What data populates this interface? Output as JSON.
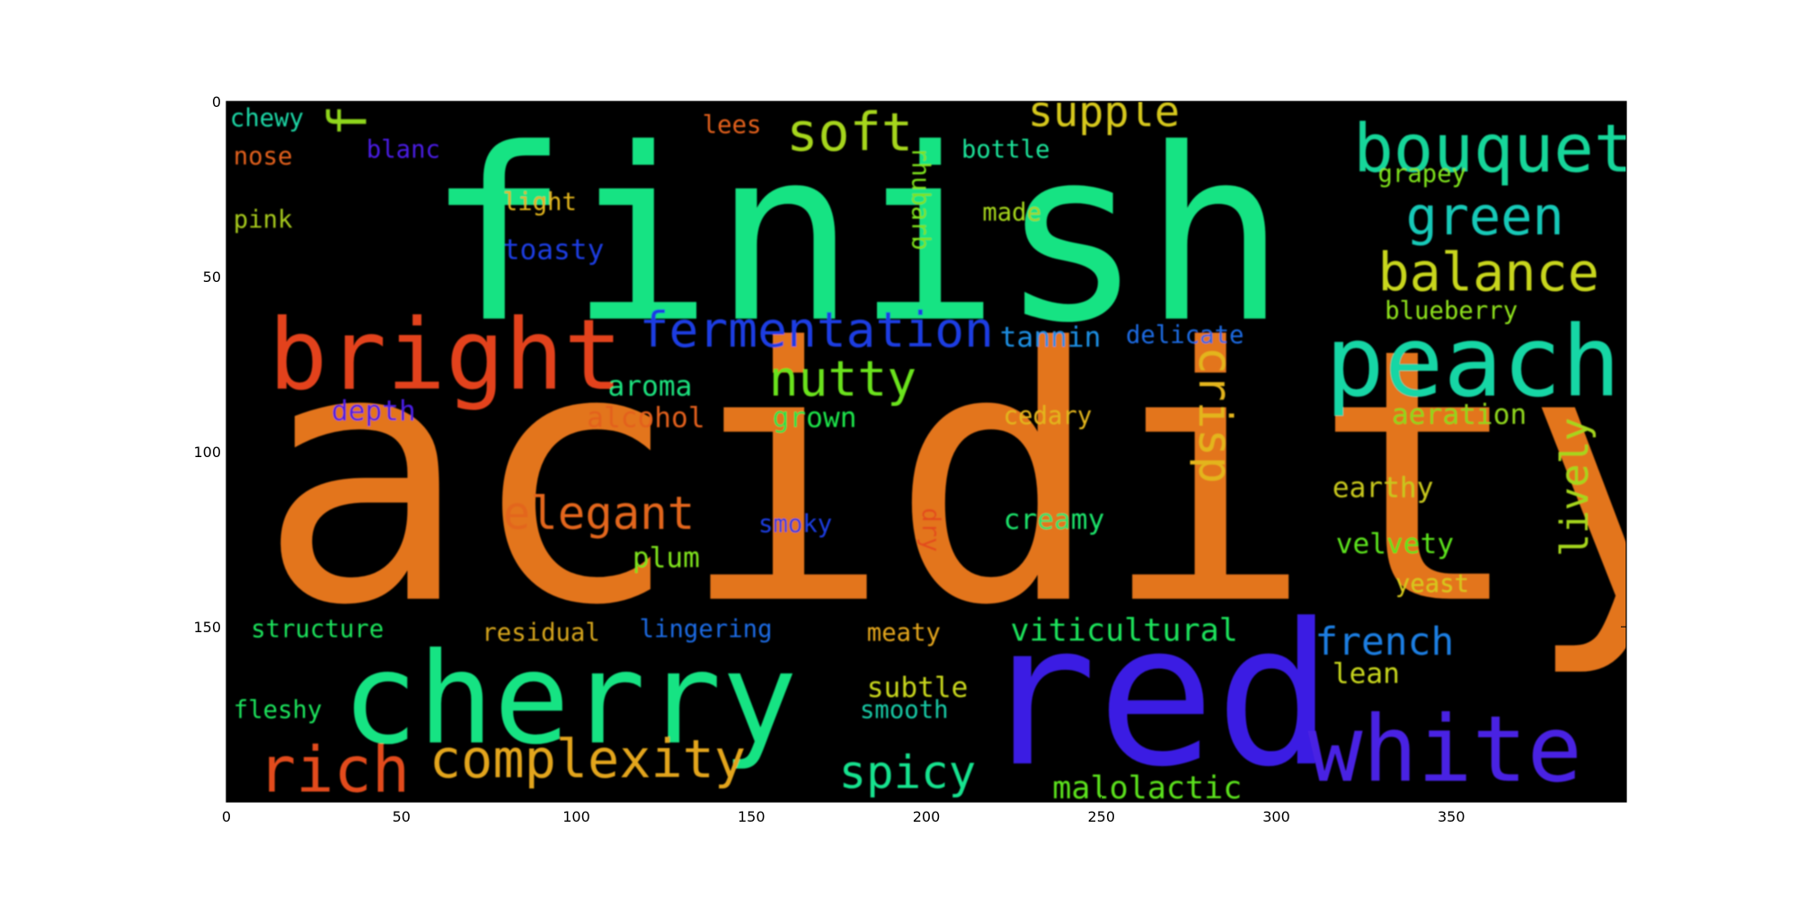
{
  "chart_data": {
    "type": "wordcloud",
    "title": "",
    "xlabel": "",
    "ylabel": "",
    "x_ticks": [
      "0",
      "50",
      "100",
      "150",
      "200",
      "250",
      "300",
      "350"
    ],
    "y_ticks": [
      "0",
      "50",
      "100",
      "150"
    ],
    "xlim": [
      0,
      400
    ],
    "ylim": [
      200,
      0
    ],
    "background": "#000000",
    "words": [
      {
        "text": "finish",
        "x": 57,
        "y": 62,
        "size": 68,
        "color": "#17e383",
        "rot": 0
      },
      {
        "text": "acidity",
        "x": 9,
        "y": 142,
        "size": 100,
        "color": "#e3751a",
        "rot": 0
      },
      {
        "text": "cherry",
        "x": 33,
        "y": 183,
        "size": 36,
        "color": "#17e383",
        "rot": 0
      },
      {
        "text": "red",
        "x": 215,
        "y": 189,
        "size": 56,
        "color": "#3a1fe3",
        "rot": 0
      },
      {
        "text": "bright",
        "x": 12,
        "y": 82,
        "size": 28,
        "color": "#e3421a",
        "rot": 0
      },
      {
        "text": "peach",
        "x": 314,
        "y": 84,
        "size": 28,
        "color": "#17d6a5",
        "rot": 0
      },
      {
        "text": "white",
        "x": 309,
        "y": 194,
        "size": 26,
        "color": "#4a20e3",
        "rot": 0
      },
      {
        "text": "bouquet",
        "x": 322,
        "y": 20,
        "size": 19,
        "color": "#17d69a",
        "rot": 0
      },
      {
        "text": "complexity",
        "x": 58,
        "y": 193,
        "size": 15,
        "color": "#e3a51a",
        "rot": 0
      },
      {
        "text": "rich",
        "x": 9,
        "y": 197,
        "size": 18,
        "color": "#e34b1a",
        "rot": 0
      },
      {
        "text": "fermentation",
        "x": 118,
        "y": 70,
        "size": 14,
        "color": "#1a3ee3",
        "rot": 0
      },
      {
        "text": "balance",
        "x": 329,
        "y": 54,
        "size": 15,
        "color": "#c8d61a",
        "rot": 0
      },
      {
        "text": "green",
        "x": 337,
        "y": 38,
        "size": 15,
        "color": "#17c9b8",
        "rot": 0
      },
      {
        "text": "soft",
        "x": 160,
        "y": 14,
        "size": 15,
        "color": "#a6d61a",
        "rot": 0
      },
      {
        "text": "supple",
        "x": 229,
        "y": 7,
        "size": 12,
        "color": "#d6c81a",
        "rot": 0
      },
      {
        "text": "nutty",
        "x": 155,
        "y": 84,
        "size": 14,
        "color": "#6be31a",
        "rot": 0
      },
      {
        "text": "elegant",
        "x": 79,
        "y": 122,
        "size": 13,
        "color": "#e3661a",
        "rot": 0
      },
      {
        "text": "spicy",
        "x": 175,
        "y": 196,
        "size": 13,
        "color": "#17e38f",
        "rot": 0
      },
      {
        "text": "french",
        "x": 311,
        "y": 158,
        "size": 11,
        "color": "#1a7fe3",
        "rot": 0
      },
      {
        "text": "viticultural",
        "x": 224,
        "y": 154,
        "size": 9,
        "color": "#1ae35c",
        "rot": 0
      },
      {
        "text": "malolactic",
        "x": 236,
        "y": 199,
        "size": 9,
        "color": "#5ce31a",
        "rot": 0
      },
      {
        "text": "aroma",
        "x": 109,
        "y": 84,
        "size": 8,
        "color": "#1ae37f",
        "rot": 0
      },
      {
        "text": "alcohol",
        "x": 103,
        "y": 93,
        "size": 8,
        "color": "#e3601a",
        "rot": 0
      },
      {
        "text": "grown",
        "x": 156,
        "y": 93,
        "size": 8,
        "color": "#1ae34a",
        "rot": 0
      },
      {
        "text": "cedary",
        "x": 222,
        "y": 92,
        "size": 7,
        "color": "#e3b51a",
        "rot": 0
      },
      {
        "text": "aeration",
        "x": 333,
        "y": 92,
        "size": 8,
        "color": "#8fd61a",
        "rot": 0
      },
      {
        "text": "tannin",
        "x": 221,
        "y": 70,
        "size": 8,
        "color": "#1a8fe3",
        "rot": 0
      },
      {
        "text": "delicate",
        "x": 257,
        "y": 69,
        "size": 7,
        "color": "#1a6be3",
        "rot": 0
      },
      {
        "text": "blueberry",
        "x": 331,
        "y": 62,
        "size": 7,
        "color": "#8fe31a",
        "rot": 0
      },
      {
        "text": "depth",
        "x": 30,
        "y": 91,
        "size": 8,
        "color": "#4a1ae3",
        "rot": 0
      },
      {
        "text": "toasty",
        "x": 79,
        "y": 45,
        "size": 8,
        "color": "#1a3ee3",
        "rot": 0
      },
      {
        "text": "light",
        "x": 79,
        "y": 31,
        "size": 7,
        "color": "#e3b51a",
        "rot": 0
      },
      {
        "text": "pink",
        "x": 2,
        "y": 36,
        "size": 7,
        "color": "#a5c81a",
        "rot": 0
      },
      {
        "text": "nose",
        "x": 2,
        "y": 18,
        "size": 7,
        "color": "#e3601a",
        "rot": 0
      },
      {
        "text": "chewy",
        "x": 1,
        "y": 7,
        "size": 7,
        "color": "#1ad6a5",
        "rot": 0
      },
      {
        "text": "blanc",
        "x": 40,
        "y": 16,
        "size": 7,
        "color": "#4a1ae3",
        "rot": 0
      },
      {
        "text": "lees",
        "x": 136,
        "y": 9,
        "size": 7,
        "color": "#e3601a",
        "rot": 0
      },
      {
        "text": "bottle",
        "x": 210,
        "y": 16,
        "size": 7,
        "color": "#1ae39a",
        "rot": 0
      },
      {
        "text": "grapey",
        "x": 329,
        "y": 23,
        "size": 7,
        "color": "#7fe31a",
        "rot": 0
      },
      {
        "text": "made",
        "x": 216,
        "y": 34,
        "size": 7,
        "color": "#a5d61a",
        "rot": 0
      },
      {
        "text": "earthy",
        "x": 316,
        "y": 113,
        "size": 8,
        "color": "#c8c81a",
        "rot": 0
      },
      {
        "text": "velvety",
        "x": 317,
        "y": 129,
        "size": 8,
        "color": "#5ce31a",
        "rot": 0
      },
      {
        "text": "yeast",
        "x": 334,
        "y": 140,
        "size": 7,
        "color": "#d6c81a",
        "rot": 0
      },
      {
        "text": "creamy",
        "x": 222,
        "y": 122,
        "size": 8,
        "color": "#1ae36b",
        "rot": 0
      },
      {
        "text": "smoky",
        "x": 152,
        "y": 123,
        "size": 7,
        "color": "#1a3ee3",
        "rot": 0
      },
      {
        "text": "plum",
        "x": 116,
        "y": 133,
        "size": 8,
        "color": "#7fe31a",
        "rot": 0
      },
      {
        "text": "structure",
        "x": 7,
        "y": 153,
        "size": 7,
        "color": "#1ae35c",
        "rot": 0
      },
      {
        "text": "residual",
        "x": 73,
        "y": 154,
        "size": 7,
        "color": "#d6a51a",
        "rot": 0
      },
      {
        "text": "lingering",
        "x": 118,
        "y": 153,
        "size": 7,
        "color": "#1a6be3",
        "rot": 0
      },
      {
        "text": "meaty",
        "x": 183,
        "y": 154,
        "size": 7,
        "color": "#e3a51a",
        "rot": 0
      },
      {
        "text": "subtle",
        "x": 183,
        "y": 170,
        "size": 8,
        "color": "#c8d61a",
        "rot": 0
      },
      {
        "text": "smooth",
        "x": 181,
        "y": 176,
        "size": 7,
        "color": "#17c9a5",
        "rot": 0
      },
      {
        "text": "lean",
        "x": 316,
        "y": 166,
        "size": 8,
        "color": "#c8d61a",
        "rot": 0
      },
      {
        "text": "fleshy",
        "x": 2,
        "y": 176,
        "size": 7,
        "color": "#1ae35c",
        "rot": 0
      },
      {
        "text": "fresh",
        "x": 40,
        "y": 10,
        "size": 15,
        "color": "#8fd61a",
        "rot": -90
      },
      {
        "text": "crisp",
        "x": 278,
        "y": 70,
        "size": 13,
        "color": "#e3b51a",
        "rot": 90
      },
      {
        "text": "lively",
        "x": 389,
        "y": 130,
        "size": 11,
        "color": "#a5d61a",
        "rot": -90
      },
      {
        "text": "rhubarb",
        "x": 196,
        "y": 13,
        "size": 7,
        "color": "#7fe31a",
        "rot": 90
      },
      {
        "text": "dry",
        "x": 199,
        "y": 116,
        "size": 7,
        "color": "#e34b1a",
        "rot": 90
      }
    ]
  }
}
